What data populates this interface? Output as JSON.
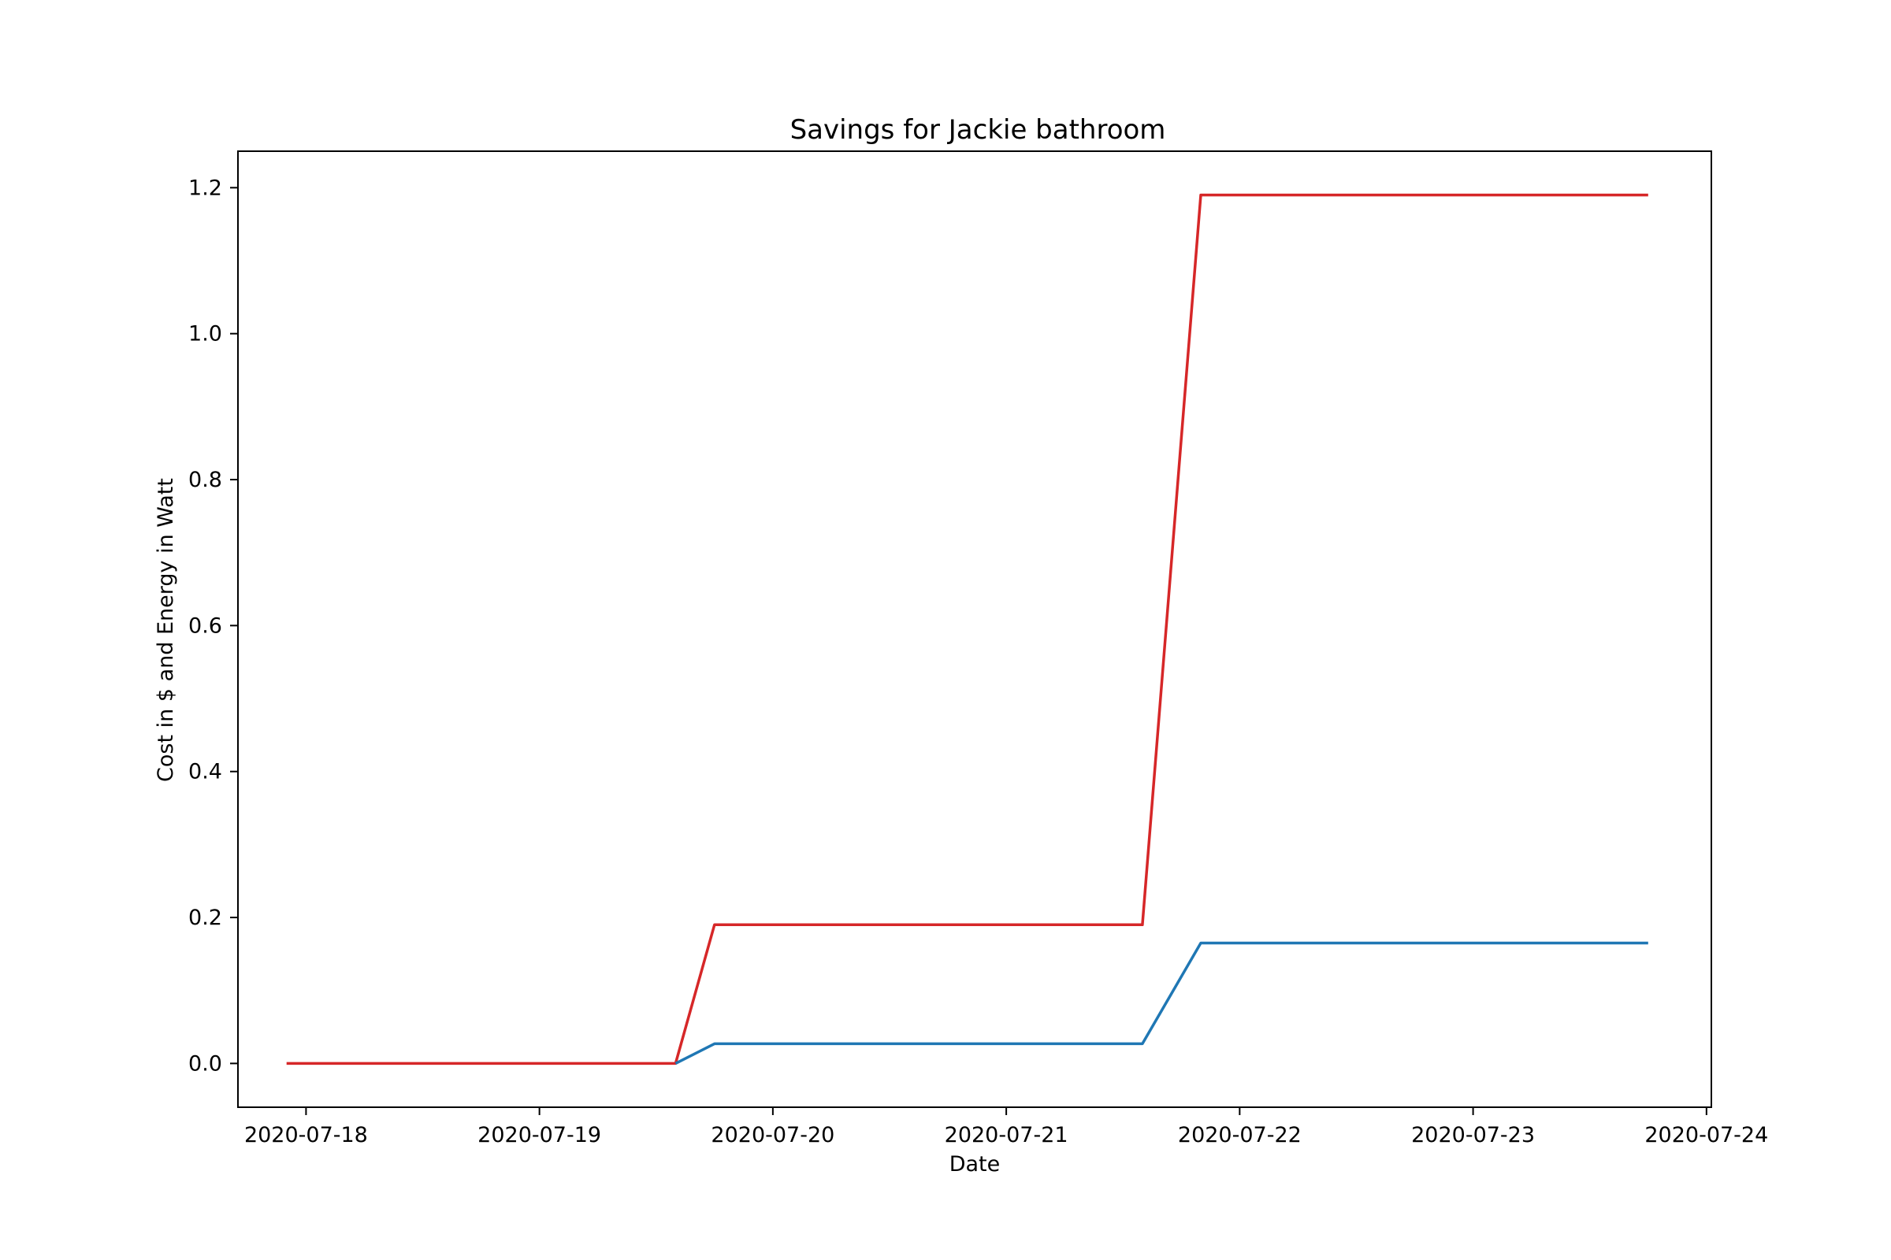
{
  "chart_data": {
    "type": "line",
    "title": "Savings for Jackie bathroom",
    "xlabel": "Date",
    "ylabel": "Cost in $ and Energy in Watt",
    "x_ticks": [
      "2020-07-18",
      "2020-07-19",
      "2020-07-20",
      "2020-07-21",
      "2020-07-22",
      "2020-07-23",
      "2020-07-24"
    ],
    "y_ticks": [
      "0.0",
      "0.2",
      "0.4",
      "0.6",
      "0.8",
      "1.0",
      "1.2"
    ],
    "xlim": [
      "2020-07-17 17:00",
      "2020-07-24 00:30"
    ],
    "ylim": [
      -0.06,
      1.25
    ],
    "grid": false,
    "legend": "none",
    "series": [
      {
        "color": "#d62728",
        "points": [
          [
            "2020-07-17 22:00",
            0.0
          ],
          [
            "2020-07-19 14:00",
            0.0
          ],
          [
            "2020-07-19 18:00",
            0.19
          ],
          [
            "2020-07-21 14:00",
            0.19
          ],
          [
            "2020-07-21 20:00",
            1.19
          ],
          [
            "2020-07-23 18:00",
            1.19
          ]
        ]
      },
      {
        "color": "#1f77b4",
        "points": [
          [
            "2020-07-19 14:00",
            0.0
          ],
          [
            "2020-07-19 18:00",
            0.027
          ],
          [
            "2020-07-21 14:00",
            0.027
          ],
          [
            "2020-07-21 20:00",
            0.165
          ],
          [
            "2020-07-23 18:00",
            0.165
          ]
        ]
      }
    ]
  }
}
